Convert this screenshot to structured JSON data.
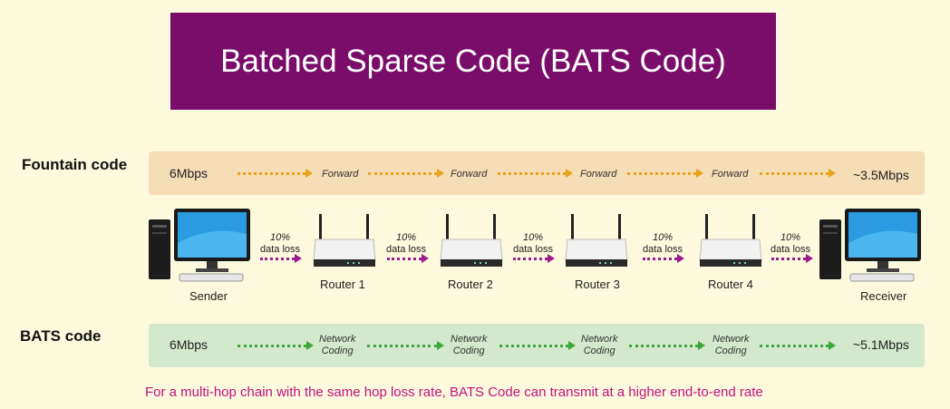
{
  "title": "Batched Sparse Code (BATS Code)",
  "fountain": {
    "label": "Fountain code",
    "start_rate": "6Mbps",
    "end_rate": "~3.5Mbps",
    "steps": [
      "Forward",
      "Forward",
      "Forward",
      "Forward"
    ],
    "arrow_color": "#e8a21c"
  },
  "bats": {
    "label": "BATS code",
    "start_rate": "6Mbps",
    "end_rate": "~5.1Mbps",
    "steps": [
      "Network\nCoding",
      "Network\nCoding",
      "Network\nCoding",
      "Network\nCoding"
    ],
    "arrow_color": "#3aa83a"
  },
  "chain": {
    "sender": "Sender",
    "receiver": "Receiver",
    "routers": [
      "Router 1",
      "Router 2",
      "Router 3",
      "Router 4"
    ],
    "loss_pct": [
      "10%",
      "10%",
      "10%",
      "10%",
      "10%"
    ],
    "loss_text": [
      "data loss",
      "data loss",
      "data loss",
      "data loss",
      "data loss"
    ],
    "arrow_color": "#9b1c8c"
  },
  "footer": "For a multi-hop chain with the same hop loss rate, BATS Code can transmit at a higher end-to-end rate"
}
